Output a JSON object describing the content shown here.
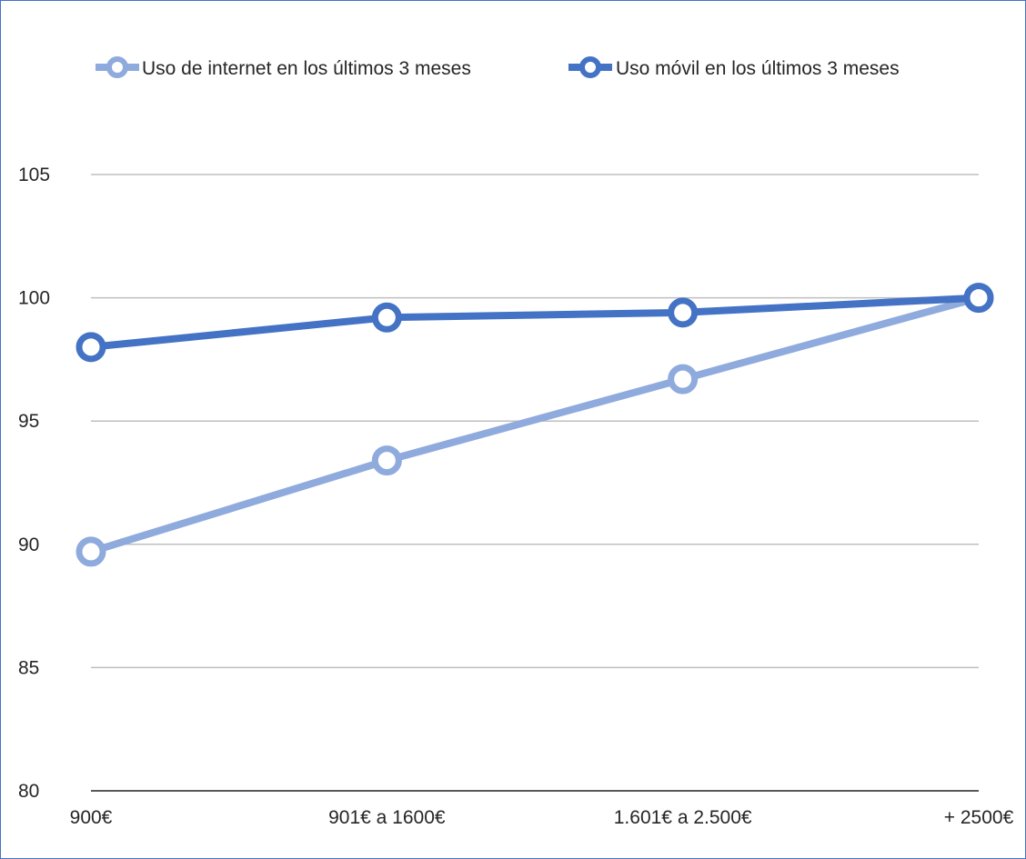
{
  "chart_data": {
    "type": "line",
    "categories": [
      "900€",
      "901€ a 1600€",
      "1.601€ a 2.500€",
      "+ 2500€"
    ],
    "series": [
      {
        "name": "Uso de internet en los últimos 3 meses",
        "values": [
          89.7,
          93.4,
          96.7,
          100
        ],
        "color": "#8faadc"
      },
      {
        "name": "Uso móvil en los últimos 3 meses",
        "values": [
          98.0,
          99.2,
          99.4,
          100
        ],
        "color": "#4472c4"
      }
    ],
    "ylim": [
      80,
      105
    ],
    "yticks": [
      80,
      85,
      90,
      95,
      100,
      105
    ],
    "grid": true,
    "legend": "top"
  }
}
